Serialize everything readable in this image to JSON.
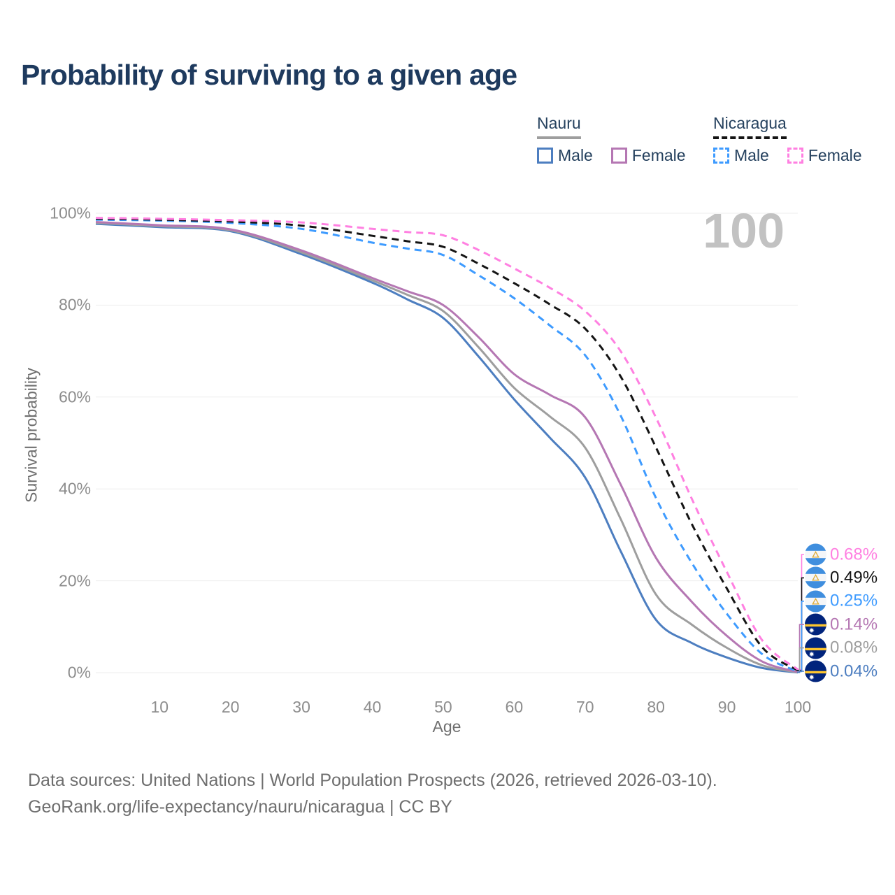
{
  "title": "Probability of surviving to a given age",
  "legend": {
    "groups": [
      {
        "label": "Nauru",
        "line_style": "solid",
        "line_color": "#9e9e9e",
        "items": [
          {
            "label": "Male",
            "color": "#4d7ec0",
            "dash": false
          },
          {
            "label": "Female",
            "color": "#b577b3",
            "dash": false
          }
        ]
      },
      {
        "label": "Nicaragua",
        "line_style": "dashed",
        "line_color": "#141414",
        "items": [
          {
            "label": "Male",
            "color": "#3e9bff",
            "dash": true
          },
          {
            "label": "Female",
            "color": "#ff80e1",
            "dash": true
          }
        ]
      }
    ]
  },
  "chart_data": {
    "type": "line",
    "title": "Probability of surviving to a given age",
    "xlabel": "Age",
    "ylabel": "Survival probability",
    "watermark": "100",
    "grid": true,
    "legend_position": "top-right",
    "xlim": [
      1,
      100
    ],
    "ylim": [
      0,
      100
    ],
    "x_ticks": [
      10,
      20,
      30,
      40,
      50,
      60,
      70,
      80,
      90,
      100
    ],
    "y_ticks": {
      "values": [
        0,
        20,
        40,
        60,
        80,
        100
      ],
      "labels": [
        "0%",
        "20%",
        "40%",
        "60%",
        "80%",
        "100%"
      ]
    },
    "x": [
      1,
      10,
      20,
      30,
      40,
      45,
      50,
      55,
      60,
      65,
      70,
      75,
      80,
      85,
      90,
      95,
      100
    ],
    "series": [
      {
        "name": "Nicaragua Female",
        "country": "Nicaragua",
        "sex": "Female",
        "color": "#ff80e1",
        "dash": true,
        "flag": "nicaragua",
        "end_label": "0.68%",
        "values": [
          99.0,
          98.8,
          98.5,
          98.0,
          96.6,
          95.9,
          95.2,
          92.0,
          88.0,
          83.8,
          78.7,
          70.0,
          55.5,
          38.0,
          21.9,
          7.0,
          0.68
        ]
      },
      {
        "name": "Nicaragua Both sexes",
        "country": "Nicaragua",
        "sex": "Both",
        "color": "#141414",
        "dash": true,
        "flag": "nicaragua",
        "end_label": "0.49%",
        "values": [
          98.8,
          98.6,
          98.2,
          97.3,
          95.1,
          93.9,
          92.7,
          89.0,
          84.8,
          80.2,
          74.9,
          64.5,
          49.0,
          32.5,
          18.3,
          5.5,
          0.49
        ]
      },
      {
        "name": "Nicaragua Male",
        "country": "Nicaragua",
        "sex": "Male",
        "color": "#3e9bff",
        "dash": true,
        "flag": "nicaragua",
        "end_label": "0.25%",
        "values": [
          98.6,
          98.4,
          97.9,
          96.6,
          93.6,
          92.3,
          90.9,
          86.5,
          81.5,
          75.6,
          69.1,
          56.0,
          38.0,
          24.0,
          12.8,
          4.0,
          0.25
        ]
      },
      {
        "name": "Nauru Female",
        "country": "Nauru",
        "sex": "Female",
        "color": "#b577b3",
        "dash": false,
        "flag": "nauru",
        "end_label": "0.14%",
        "values": [
          98.1,
          97.4,
          96.5,
          91.9,
          85.9,
          83.0,
          80.0,
          73.0,
          65.0,
          60.5,
          55.6,
          41.0,
          25.0,
          15.5,
          8.0,
          2.4,
          0.14
        ]
      },
      {
        "name": "Nauru Both sexes",
        "country": "Nauru",
        "sex": "Both",
        "color": "#9e9e9e",
        "dash": false,
        "flag": "nauru",
        "end_label": "0.08%",
        "values": [
          97.9,
          97.2,
          96.3,
          91.5,
          85.4,
          82.2,
          78.7,
          70.8,
          62.0,
          55.8,
          49.0,
          33.5,
          17.0,
          10.5,
          5.4,
          1.6,
          0.08
        ]
      },
      {
        "name": "Nauru Male",
        "country": "Nauru",
        "sex": "Male",
        "color": "#4d7ec0",
        "dash": false,
        "flag": "nauru",
        "end_label": "0.04%",
        "values": [
          97.7,
          97.0,
          96.1,
          91.1,
          84.9,
          81.2,
          77.2,
          68.8,
          59.5,
          51.2,
          42.5,
          26.5,
          11.5,
          6.5,
          3.3,
          1.0,
          0.04
        ]
      }
    ]
  },
  "footer": {
    "line1": "Data sources: United Nations | World Population Prospects (2026, retrieved 2026-03-10).",
    "line2": "GeoRank.org/life-expectancy/nauru/nicaragua | CC BY"
  }
}
